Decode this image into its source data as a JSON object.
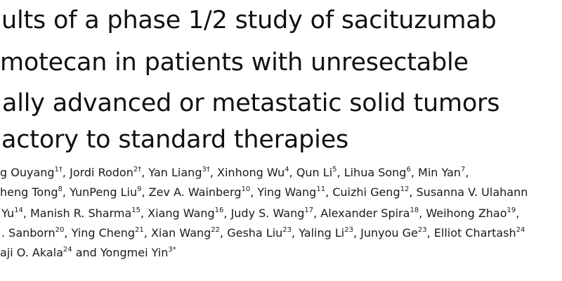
{
  "title": {
    "lines": [
      "ults of a phase 1/2 study of sacituzumab",
      "motecan in patients with unresectable",
      "ally advanced or metastatic solid tumors",
      "actory to standard therapies"
    ]
  },
  "authors": {
    "lines": [
      [
        {
          "name": "g Ouyang",
          "sup": "1†",
          "sep": ", "
        },
        {
          "name": "Jordi Rodon",
          "sup": "2†",
          "sep": ", "
        },
        {
          "name": "Yan Liang",
          "sup": "3†",
          "sep": ", "
        },
        {
          "name": "Xinhong Wu",
          "sup": "4",
          "sep": ", "
        },
        {
          "name": "Qun Li",
          "sup": "5",
          "sep": ", "
        },
        {
          "name": "Lihua Song",
          "sup": "6",
          "sep": ", "
        },
        {
          "name": "Min Yan",
          "sup": "7",
          "sep": ","
        }
      ],
      [
        {
          "name": "heng Tong",
          "sup": "8",
          "sep": ", "
        },
        {
          "name": "YunPeng Liu",
          "sup": "9",
          "sep": ", "
        },
        {
          "name": "Zev A. Wainberg",
          "sup": "10",
          "sep": ", "
        },
        {
          "name": "Ying Wang",
          "sup": "11",
          "sep": ", "
        },
        {
          "name": "Cuizhi Geng",
          "sup": "12",
          "sep": ", "
        },
        {
          "name": "Susanna V. Ulahann",
          "sup": "",
          "sep": ""
        }
      ],
      [
        {
          "name": "Yu",
          "sup": "14",
          "sep": ", "
        },
        {
          "name": "Manish R. Sharma",
          "sup": "15",
          "sep": ", "
        },
        {
          "name": "Xiang Wang",
          "sup": "16",
          "sep": ", "
        },
        {
          "name": "Judy S. Wang",
          "sup": "17",
          "sep": ", "
        },
        {
          "name": "Alexander Spira",
          "sup": "18",
          "sep": ", "
        },
        {
          "name": "Weihong Zhao",
          "sup": "19",
          "sep": ","
        }
      ],
      [
        {
          "name": ". Sanborn",
          "sup": "20",
          "sep": ", "
        },
        {
          "name": "Ying Cheng",
          "sup": "21",
          "sep": ", "
        },
        {
          "name": "Xian Wang",
          "sup": "22",
          "sep": ", "
        },
        {
          "name": "Gesha Liu",
          "sup": "23",
          "sep": ", "
        },
        {
          "name": "Yaling Li",
          "sup": "23",
          "sep": ", "
        },
        {
          "name": "Junyou Ge",
          "sup": "23",
          "sep": ", "
        },
        {
          "name": "Elliot Chartash",
          "sup": "24",
          "sep": ""
        }
      ],
      [
        {
          "name": "aji O. Akala",
          "sup": "24",
          "sep": " and "
        },
        {
          "name": "Yongmei Yin",
          "sup": "3*",
          "sep": ""
        }
      ]
    ]
  }
}
